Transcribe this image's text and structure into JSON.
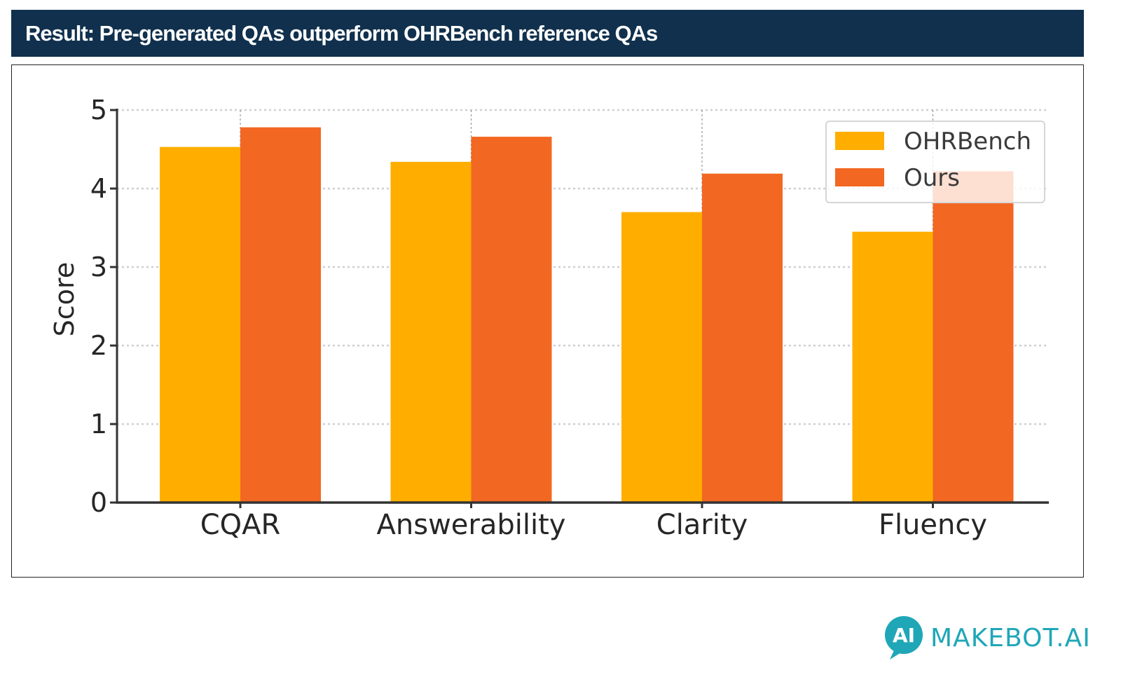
{
  "header": {
    "title": "Result: Pre-generated QAs outperform OHRBench reference QAs"
  },
  "brand": {
    "name": "MAKEBOT.AI",
    "icon_name": "makebot-logo-icon",
    "icon_text": "AI",
    "color": "#1fa7b8"
  },
  "colors": {
    "title_bg": "#10304d",
    "series_ohrbench": "#ffae00",
    "series_ours": "#f26722"
  },
  "chart_data": {
    "type": "bar",
    "categories": [
      "CQAR",
      "Answerability",
      "Clarity",
      "Fluency"
    ],
    "series": [
      {
        "name": "OHRBench",
        "values": [
          4.53,
          4.34,
          3.7,
          3.45
        ],
        "color": "#ffae00"
      },
      {
        "name": "Ours",
        "values": [
          4.78,
          4.66,
          4.19,
          4.22
        ],
        "color": "#f26722"
      }
    ],
    "title": "",
    "xlabel": "",
    "ylabel": "Score",
    "ylim": [
      0,
      5
    ],
    "yticks": [
      0,
      1,
      2,
      3,
      4,
      5
    ],
    "grid": true,
    "legend": "top-right"
  }
}
